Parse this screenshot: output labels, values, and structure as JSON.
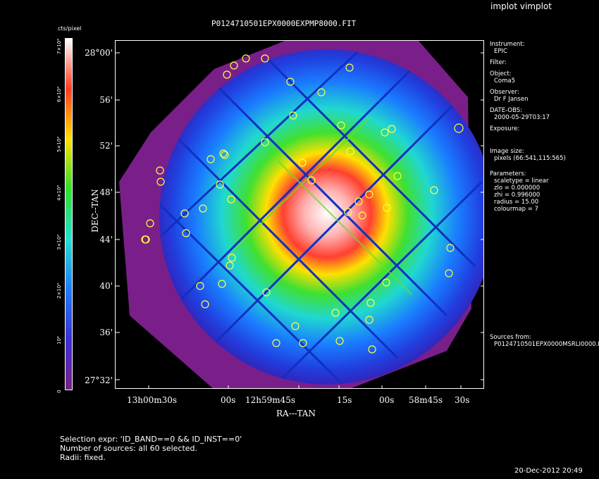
{
  "window": {
    "title": "implot vimplot"
  },
  "plot": {
    "title": "P0124710501EPX0000EXPMP8000.FIT",
    "xlabel": "RA---TAN",
    "ylabel": "DEC--TAN",
    "y_ticks": [
      "28°00'",
      "56'",
      "52'",
      "48'",
      "44'",
      "40'",
      "36'",
      "27°32'"
    ],
    "x_ticks": [
      "13h00m30s",
      "00s",
      "12h59m45s",
      "15s",
      "00s",
      "58m45s",
      "30s"
    ]
  },
  "colorbar": {
    "unit": "cts/pixel",
    "ticks": [
      "0",
      "10⁴",
      "2×10⁴",
      "3×10⁴",
      "4×10⁴",
      "5×10⁴",
      "6×10⁴",
      "7×10⁴"
    ],
    "colors": [
      "#7a1f8a",
      "#3b2fd8",
      "#1e7cff",
      "#22e0d0",
      "#2fe02a",
      "#ffe000",
      "#ff3a20",
      "#ffffff"
    ]
  },
  "info": {
    "instrument_label": "Instrument:",
    "instrument": "EPIC",
    "filter_label": "Filter:",
    "filter": "",
    "object_label": "Object:",
    "object": "Coma5",
    "observer_label": "Observer:",
    "observer": "Dr F Jansen",
    "date_label": "DATE-OBS:",
    "date": "2000-05-29T03:17",
    "exposure_label": "Exposure:",
    "exposure": "",
    "image_size_label": "Image size:",
    "image_size": "pixels (66:541,115:565)",
    "params_label": "Parameters:",
    "scaletype": "scaletype = linear",
    "zlo": "zlo = 0.000000",
    "zhi": "zhi = 0.996000",
    "radius": "radius = 15.00",
    "colourmap": "colourmap = 7",
    "sources_label": "Sources from:",
    "sources": "P0124710501EPX0000MSRLI0000.F"
  },
  "footer": {
    "line1": "Selection expr: 'ID_BAND==0 && ID_INST==0'",
    "line2": "Number of sources: all 60 selected.",
    "line3": "Radii: fixed."
  },
  "timestamp": "20-Dec-2012 20:49"
}
